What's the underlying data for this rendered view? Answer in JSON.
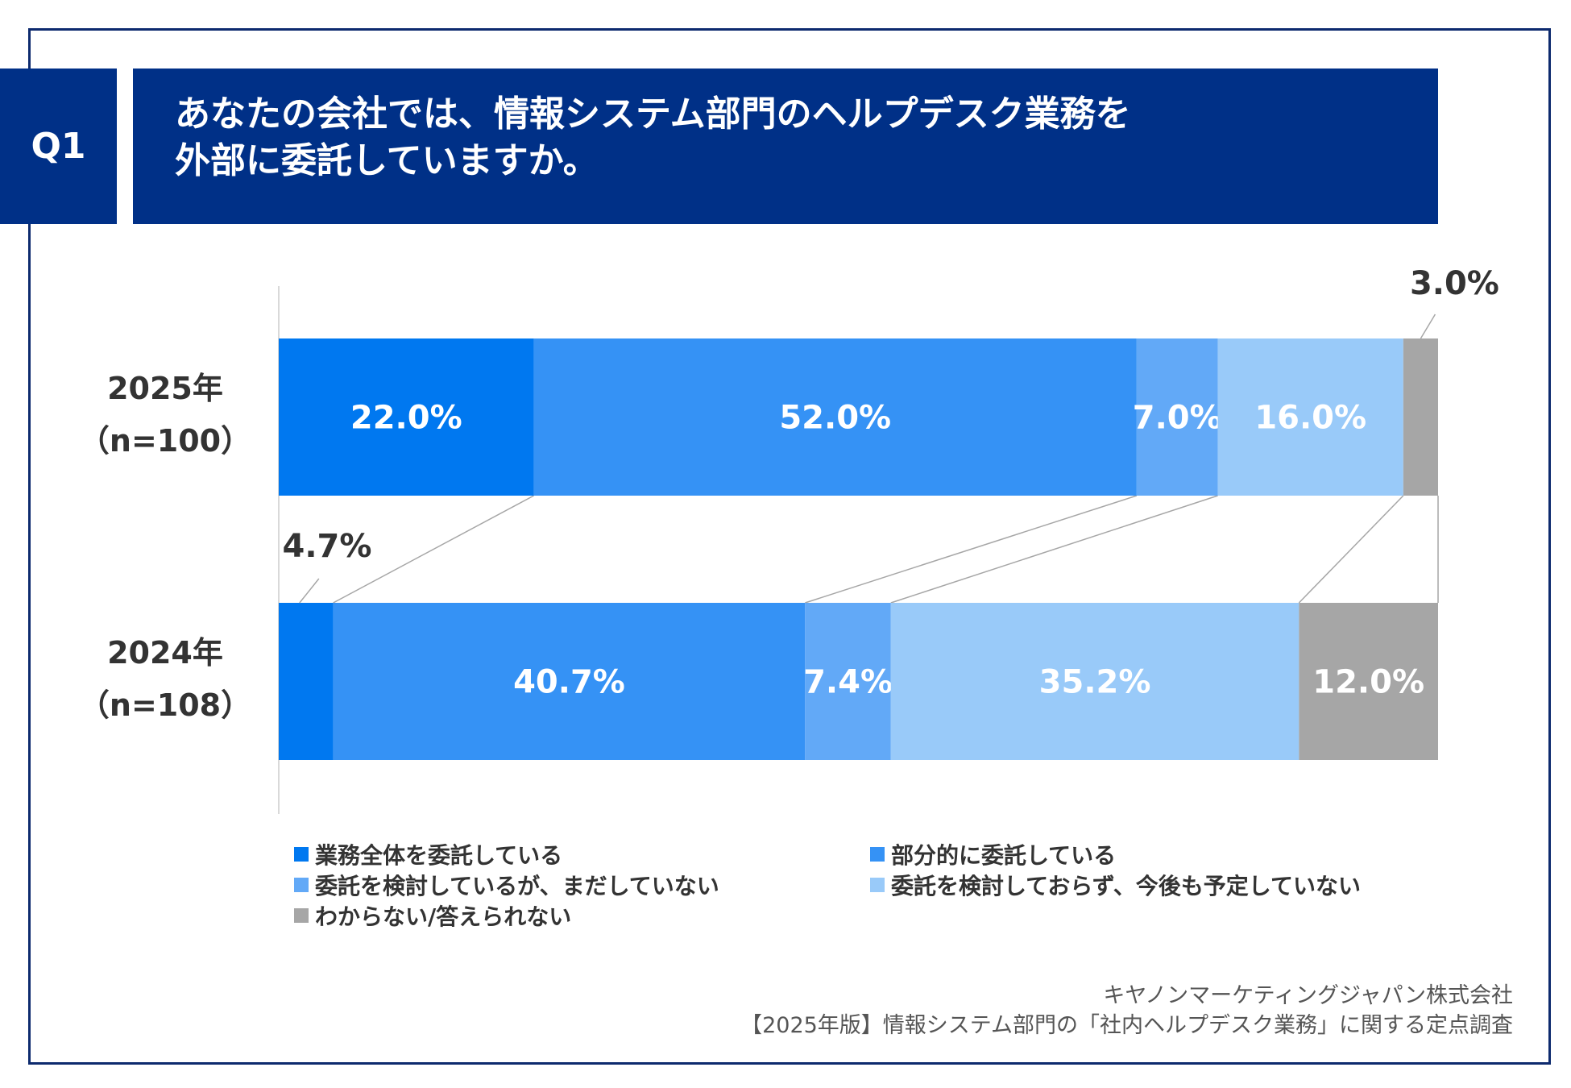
{
  "header": {
    "q_label": "Q1",
    "title_line1": "あなたの会社では、情報システム部門のヘルプデスク業務を",
    "title_line2": "外部に委託していますか。"
  },
  "colors": {
    "frame": "#0d2a6e",
    "header_bg": "#003087",
    "connector": "#a6a6a6"
  },
  "chart_data": {
    "type": "bar",
    "orientation": "horizontal-stacked-100",
    "categories": [
      {
        "year": "2025年",
        "n": "（n=100）"
      },
      {
        "year": "2024年",
        "n": "（n=108）"
      }
    ],
    "series": [
      {
        "name": "業務全体を委託している",
        "color": "#0078f0",
        "values": [
          22.0,
          4.7
        ],
        "labels": [
          "22.0%",
          "4.7%"
        ]
      },
      {
        "name": "部分的に委託している",
        "color": "#3592f5",
        "values": [
          52.0,
          40.7
        ],
        "labels": [
          "52.0%",
          "40.7%"
        ]
      },
      {
        "name": "委託を検討しているが、まだしていない",
        "color": "#62a9f7",
        "values": [
          7.0,
          7.4
        ],
        "labels": [
          "7.0%",
          "7.4%"
        ]
      },
      {
        "name": "委託を検討しておらず、今後も予定していない",
        "color": "#99caf9",
        "values": [
          16.0,
          35.2
        ],
        "labels": [
          "16.0%",
          "35.2%"
        ]
      },
      {
        "name": "わからない/答えられない",
        "color": "#a6a6a6",
        "values": [
          3.0,
          12.0
        ],
        "labels": [
          "3.0%",
          "12.0%"
        ]
      }
    ],
    "xlim": [
      0,
      100
    ]
  },
  "source": {
    "line1": "キヤノンマーケティングジャパン株式会社",
    "line2": "【2025年版】情報システム部門の「社内ヘルプデスク業務」に関する定点調査"
  }
}
